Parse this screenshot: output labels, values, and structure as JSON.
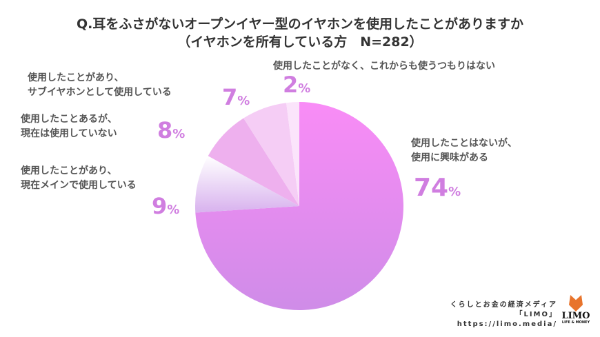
{
  "chart_data": {
    "type": "pie",
    "title": "Q.耳をふさがないオープンイヤー型のイヤホンを使用したことがありますか",
    "subtitle": "（イヤホンを所有している方　N=282）",
    "slices": [
      {
        "label": "使用したことはないが、使用に興味がある",
        "lines": [
          "使用したことはないが、",
          "使用に興味がある"
        ],
        "value": 74,
        "display": "74",
        "color": "#ee8cf2"
      },
      {
        "label": "使用したことがあり、現在メインで使用している",
        "lines": [
          "使用したことがあり、",
          "現在メインで使用している"
        ],
        "value": 9,
        "display": "9",
        "color": "#f5ecfa"
      },
      {
        "label": "使用したことあるが、現在は使用していない",
        "lines": [
          "使用したことあるが、",
          "現在は使用していない"
        ],
        "value": 8,
        "display": "8",
        "color": "#eeb0ee"
      },
      {
        "label": "使用したことがあり、サブイヤホンとして使用している",
        "lines": [
          "使用したことがあり、",
          "サブイヤホンとして使用している"
        ],
        "value": 7,
        "display": "7",
        "color": "#f5cdf5"
      },
      {
        "label": "使用したことがなく、これからも使うつもりはない",
        "lines": [
          "使用したことがなく、これからも使うつもりはない"
        ],
        "value": 2,
        "display": "2",
        "color": "#fbe4fb"
      }
    ],
    "unit": "%"
  },
  "credit": {
    "line1": "くらしとお金の経済メディア",
    "line2": "「LIMO」",
    "line3": "https://limo.media/"
  },
  "logo": {
    "name": "LIMO",
    "sub": "LIFE & MONEY"
  }
}
